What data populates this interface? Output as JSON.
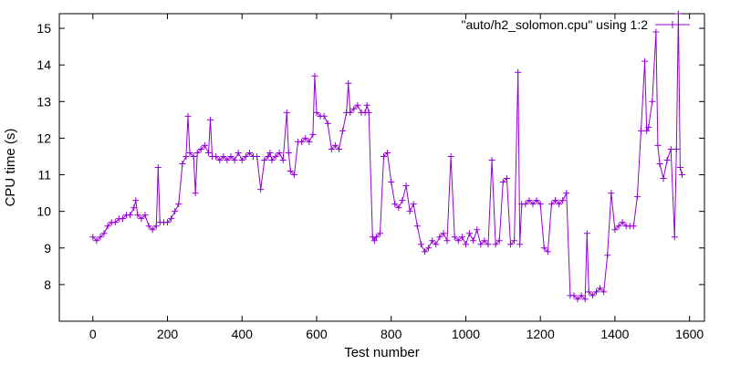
{
  "chart_data": {
    "type": "line",
    "title": "",
    "xlabel": "Test number",
    "ylabel": "CPU time (s)",
    "xlim": [
      -90,
      1640
    ],
    "ylim": [
      7.0,
      15.4
    ],
    "xticks": [
      0,
      200,
      400,
      600,
      800,
      1000,
      1200,
      1400,
      1600
    ],
    "yticks": [
      8,
      9,
      10,
      11,
      12,
      13,
      14,
      15
    ],
    "grid": false,
    "legend_position": "top-right",
    "series": [
      {
        "name": "\"auto/h2_solomon.cpu\" using 1:2",
        "color": "#9400d3",
        "marker": "plus",
        "x": [
          0,
          10,
          20,
          30,
          40,
          50,
          60,
          70,
          80,
          90,
          100,
          110,
          115,
          120,
          130,
          140,
          150,
          160,
          170,
          175,
          180,
          190,
          200,
          210,
          220,
          230,
          240,
          250,
          255,
          260,
          270,
          275,
          280,
          290,
          300,
          310,
          315,
          320,
          330,
          340,
          350,
          360,
          370,
          380,
          390,
          400,
          410,
          420,
          430,
          440,
          450,
          460,
          470,
          475,
          480,
          490,
          500,
          510,
          520,
          525,
          530,
          540,
          550,
          560,
          570,
          580,
          590,
          595,
          600,
          610,
          620,
          630,
          640,
          650,
          660,
          670,
          680,
          685,
          690,
          700,
          710,
          720,
          730,
          735,
          740,
          750,
          755,
          760,
          770,
          780,
          790,
          800,
          810,
          820,
          830,
          840,
          850,
          860,
          870,
          880,
          890,
          900,
          910,
          920,
          930,
          940,
          950,
          960,
          970,
          980,
          990,
          1000,
          1010,
          1020,
          1030,
          1040,
          1050,
          1060,
          1070,
          1080,
          1090,
          1100,
          1110,
          1120,
          1130,
          1140,
          1145,
          1150,
          1160,
          1170,
          1180,
          1190,
          1200,
          1210,
          1220,
          1230,
          1240,
          1250,
          1260,
          1270,
          1280,
          1290,
          1300,
          1310,
          1320,
          1325,
          1330,
          1340,
          1350,
          1360,
          1370,
          1380,
          1390,
          1400,
          1410,
          1420,
          1430,
          1440,
          1450,
          1460,
          1470,
          1480,
          1485,
          1490,
          1500,
          1510,
          1515,
          1520,
          1530,
          1540,
          1550,
          1560,
          1565,
          1570,
          1575,
          1580
        ],
        "y": [
          9.3,
          9.2,
          9.3,
          9.4,
          9.6,
          9.7,
          9.7,
          9.8,
          9.8,
          9.9,
          9.9,
          10.1,
          10.3,
          9.9,
          9.8,
          9.9,
          9.6,
          9.5,
          9.6,
          11.2,
          9.7,
          9.7,
          9.7,
          9.8,
          10.0,
          10.2,
          11.3,
          11.5,
          12.6,
          11.6,
          11.5,
          10.5,
          11.6,
          11.7,
          11.8,
          11.6,
          12.5,
          11.5,
          11.5,
          11.4,
          11.5,
          11.4,
          11.5,
          11.4,
          11.6,
          11.4,
          11.5,
          11.6,
          11.5,
          11.5,
          10.6,
          11.4,
          11.5,
          11.6,
          11.4,
          11.5,
          11.6,
          11.4,
          12.7,
          11.6,
          11.1,
          11.0,
          11.9,
          11.9,
          12.0,
          11.9,
          12.1,
          13.7,
          12.7,
          12.6,
          12.6,
          12.4,
          11.7,
          11.8,
          11.7,
          12.2,
          12.7,
          13.5,
          12.7,
          12.8,
          12.9,
          12.7,
          12.7,
          12.9,
          12.7,
          9.3,
          9.2,
          9.3,
          9.4,
          11.5,
          11.6,
          10.8,
          10.2,
          10.1,
          10.3,
          10.7,
          10.0,
          10.2,
          9.6,
          9.1,
          8.9,
          9.0,
          9.2,
          9.1,
          9.3,
          9.4,
          9.2,
          11.5,
          9.3,
          9.2,
          9.3,
          9.1,
          9.4,
          9.2,
          9.5,
          9.1,
          9.2,
          9.1,
          11.4,
          9.1,
          9.2,
          10.8,
          10.9,
          9.1,
          9.2,
          13.8,
          9.1,
          10.2,
          10.2,
          10.3,
          10.2,
          10.3,
          10.2,
          9.0,
          8.9,
          10.2,
          10.3,
          10.2,
          10.3,
          10.5,
          7.7,
          7.7,
          7.6,
          7.7,
          7.6,
          9.4,
          7.8,
          7.7,
          7.8,
          7.9,
          7.8,
          8.8,
          10.5,
          9.5,
          9.6,
          9.7,
          9.6,
          9.6,
          9.6,
          10.4,
          12.2,
          14.1,
          12.2,
          12.3,
          13.0,
          14.9,
          11.8,
          11.3,
          10.9,
          11.4,
          11.7,
          9.3,
          11.7,
          15.4,
          11.2,
          11.0
        ]
      }
    ]
  }
}
